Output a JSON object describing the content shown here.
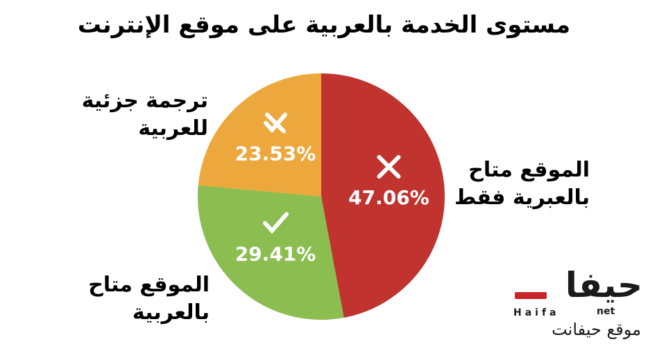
{
  "chart_data": {
    "type": "pie",
    "title": "مستوى الخدمة بالعربية على موقع الإنترنت",
    "start_angle_deg": 0,
    "direction": "clockwise",
    "slices": [
      {
        "label_lines": [
          "الموقع متاح",
          "بالعبرية فقط"
        ],
        "value": 47.06,
        "value_label": "47.06%",
        "icon": "x-mark-icon",
        "color": "#c0332f"
      },
      {
        "label_lines": [
          "الموقع متاح",
          "بالعربية"
        ],
        "value": 29.41,
        "value_label": "29.41%",
        "icon": "checkmark-icon",
        "color": "#8bbd50"
      },
      {
        "label_lines": [
          "ترجمة جزئية",
          "للعربية"
        ],
        "value": 23.53,
        "value_label": "23.53%",
        "icon": "partial-check-icon",
        "color": "#eca83c"
      }
    ]
  },
  "logo": {
    "mark": "حيفا",
    "net": "net",
    "latin": "Haifa",
    "subtitle": "موقع حيفانت"
  }
}
